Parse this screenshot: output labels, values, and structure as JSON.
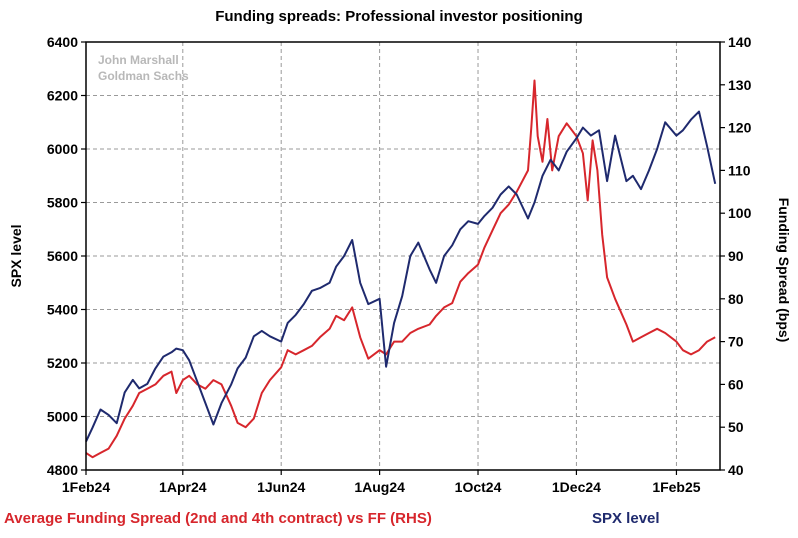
{
  "chart_data": {
    "type": "line",
    "title": "Funding spreads: Professional investor positioning",
    "watermark": [
      "John Marshall",
      "Goldman Sachs"
    ],
    "ylabel_left": "SPX level",
    "ylabel_right": "Funding Spread (bps)",
    "ylim_left": [
      4800,
      6400
    ],
    "ylim_right": [
      40,
      140
    ],
    "yticks_left": [
      4800,
      5000,
      5200,
      5400,
      5600,
      5800,
      6000,
      6200,
      6400
    ],
    "yticks_right": [
      40,
      50,
      60,
      70,
      80,
      90,
      100,
      110,
      120,
      130,
      140
    ],
    "xlim": [
      "2024-02-01",
      "2025-02-28"
    ],
    "xticks": [
      {
        "date": "2024-02-01",
        "label": "1Feb24"
      },
      {
        "date": "2024-04-01",
        "label": "1Apr24"
      },
      {
        "date": "2024-06-01",
        "label": "1Jun24"
      },
      {
        "date": "2024-08-01",
        "label": "1Aug24"
      },
      {
        "date": "2024-10-01",
        "label": "1Oct24"
      },
      {
        "date": "2024-12-01",
        "label": "1Dec24"
      },
      {
        "date": "2025-02-01",
        "label": "1Feb25"
      }
    ],
    "grid": true,
    "legend_placement": "bottom",
    "series": [
      {
        "name": "Average Funding Spread (2nd and 4th contract) vs FF (RHS)",
        "axis": "right",
        "color": "#d7262c",
        "x": [
          "2024-02-01",
          "2024-02-05",
          "2024-02-10",
          "2024-02-15",
          "2024-02-20",
          "2024-02-25",
          "2024-03-01",
          "2024-03-05",
          "2024-03-10",
          "2024-03-15",
          "2024-03-20",
          "2024-03-25",
          "2024-03-28",
          "2024-04-01",
          "2024-04-05",
          "2024-04-10",
          "2024-04-15",
          "2024-04-20",
          "2024-04-25",
          "2024-05-01",
          "2024-05-05",
          "2024-05-10",
          "2024-05-15",
          "2024-05-20",
          "2024-05-25",
          "2024-06-01",
          "2024-06-05",
          "2024-06-10",
          "2024-06-15",
          "2024-06-20",
          "2024-06-25",
          "2024-07-01",
          "2024-07-05",
          "2024-07-10",
          "2024-07-15",
          "2024-07-20",
          "2024-07-25",
          "2024-08-01",
          "2024-08-05",
          "2024-08-10",
          "2024-08-15",
          "2024-08-20",
          "2024-08-25",
          "2024-09-01",
          "2024-09-05",
          "2024-09-10",
          "2024-09-15",
          "2024-09-20",
          "2024-09-25",
          "2024-10-01",
          "2024-10-05",
          "2024-10-10",
          "2024-10-15",
          "2024-10-20",
          "2024-10-25",
          "2024-11-01",
          "2024-11-03",
          "2024-11-05",
          "2024-11-07",
          "2024-11-10",
          "2024-11-13",
          "2024-11-16",
          "2024-11-20",
          "2024-11-25",
          "2024-12-01",
          "2024-12-05",
          "2024-12-08",
          "2024-12-11",
          "2024-12-14",
          "2024-12-17",
          "2024-12-20",
          "2024-12-25",
          "2025-01-01",
          "2025-01-05",
          "2025-01-10",
          "2025-01-15",
          "2025-01-20",
          "2025-01-25",
          "2025-02-01",
          "2025-02-05",
          "2025-02-10",
          "2025-02-15",
          "2025-02-20",
          "2025-02-25"
        ],
        "values": [
          44,
          43,
          44,
          45,
          48,
          52,
          55,
          58,
          59,
          60,
          62,
          63,
          58,
          61,
          62,
          60,
          59,
          61,
          60,
          55,
          51,
          50,
          52,
          58,
          61,
          64,
          68,
          67,
          68,
          69,
          71,
          73,
          76,
          75,
          78,
          71,
          66,
          68,
          67,
          70,
          70,
          72,
          73,
          74,
          76,
          78,
          79,
          84,
          86,
          88,
          92,
          96,
          100,
          102,
          105,
          110,
          120,
          131,
          118,
          112,
          122,
          110,
          118,
          121,
          118,
          114,
          103,
          117,
          110,
          95,
          85,
          80,
          74,
          70,
          71,
          72,
          73,
          72,
          70,
          68,
          67,
          68,
          70,
          71
        ]
      },
      {
        "name": "SPX level",
        "axis": "left",
        "color": "#1f2a6e",
        "x": [
          "2024-02-01",
          "2024-02-05",
          "2024-02-10",
          "2024-02-15",
          "2024-02-20",
          "2024-02-25",
          "2024-03-01",
          "2024-03-05",
          "2024-03-10",
          "2024-03-15",
          "2024-03-20",
          "2024-03-25",
          "2024-03-28",
          "2024-04-01",
          "2024-04-05",
          "2024-04-10",
          "2024-04-15",
          "2024-04-20",
          "2024-04-25",
          "2024-05-01",
          "2024-05-05",
          "2024-05-10",
          "2024-05-15",
          "2024-05-20",
          "2024-05-25",
          "2024-06-01",
          "2024-06-05",
          "2024-06-10",
          "2024-06-15",
          "2024-06-20",
          "2024-06-25",
          "2024-07-01",
          "2024-07-05",
          "2024-07-10",
          "2024-07-15",
          "2024-07-20",
          "2024-07-25",
          "2024-08-01",
          "2024-08-05",
          "2024-08-10",
          "2024-08-15",
          "2024-08-20",
          "2024-08-25",
          "2024-09-01",
          "2024-09-05",
          "2024-09-10",
          "2024-09-15",
          "2024-09-20",
          "2024-09-25",
          "2024-10-01",
          "2024-10-05",
          "2024-10-10",
          "2024-10-15",
          "2024-10-20",
          "2024-10-25",
          "2024-11-01",
          "2024-11-05",
          "2024-11-10",
          "2024-11-15",
          "2024-11-20",
          "2024-11-25",
          "2024-12-01",
          "2024-12-05",
          "2024-12-10",
          "2024-12-15",
          "2024-12-20",
          "2024-12-25",
          "2025-01-01",
          "2025-01-05",
          "2025-01-10",
          "2025-01-15",
          "2025-01-20",
          "2025-01-25",
          "2025-02-01",
          "2025-02-05",
          "2025-02-10",
          "2025-02-15",
          "2025-02-20",
          "2025-02-25"
        ],
        "values": [
          4906,
          4958,
          5026,
          5006,
          4975,
          5090,
          5137,
          5105,
          5122,
          5180,
          5224,
          5240,
          5254,
          5248,
          5210,
          5130,
          5050,
          4970,
          5050,
          5120,
          5180,
          5220,
          5300,
          5320,
          5300,
          5280,
          5350,
          5380,
          5420,
          5470,
          5480,
          5500,
          5560,
          5600,
          5660,
          5500,
          5420,
          5440,
          5186,
          5350,
          5450,
          5600,
          5650,
          5550,
          5500,
          5600,
          5640,
          5700,
          5730,
          5720,
          5750,
          5780,
          5830,
          5860,
          5830,
          5740,
          5800,
          5900,
          5960,
          5920,
          5990,
          6040,
          6080,
          6050,
          6070,
          5880,
          6050,
          5880,
          5900,
          5850,
          5920,
          6000,
          6100,
          6050,
          6070,
          6110,
          6140,
          6010,
          5870
        ]
      }
    ]
  }
}
